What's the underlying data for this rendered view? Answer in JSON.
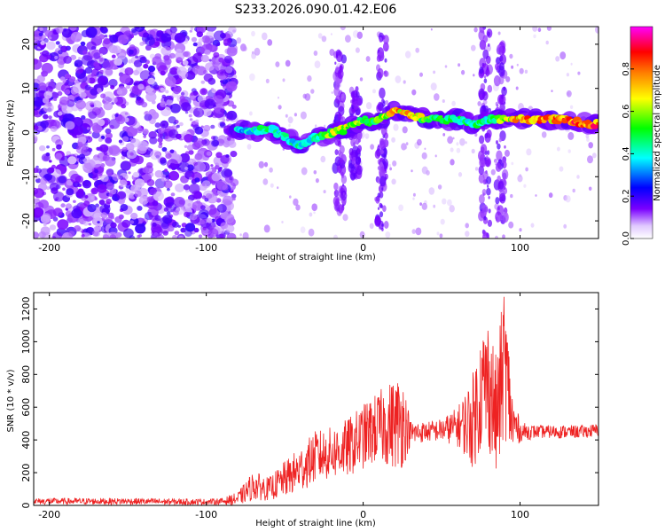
{
  "title": "S233.2026.090.01.42.E06",
  "chart_data": [
    {
      "type": "heatmap",
      "xlabel": "Height of straight line (km)",
      "ylabel": "Frequency (Hz)",
      "xlim": [
        -210,
        150
      ],
      "ylim": [
        -24,
        24
      ],
      "x_ticks": [
        -200,
        -100,
        0,
        100
      ],
      "y_ticks": [
        -20,
        -10,
        0,
        10,
        20
      ],
      "colorbar": {
        "label": "Normalized spectral amplitude",
        "range": [
          0,
          1
        ],
        "ticks": [
          "0.0",
          "0.2",
          "0.4",
          "0.6",
          "0.8"
        ],
        "colors": [
          "#ffffff",
          "#e0c8ff",
          "#7a00ff",
          "#0000ff",
          "#00ffff",
          "#00ff00",
          "#ffff00",
          "#ff8000",
          "#ff0000",
          "#ff00ff"
        ]
      },
      "ridge": {
        "name": "",
        "x": [
          -80,
          -70,
          -60,
          -50,
          -40,
          -30,
          -20,
          -10,
          0,
          5,
          20,
          30,
          40,
          50,
          60,
          70,
          80,
          90,
          100,
          110,
          120,
          130,
          140,
          150
        ],
        "y": [
          1,
          0,
          1,
          -1,
          -3,
          -1,
          0,
          1,
          3,
          2,
          5,
          4,
          3,
          3,
          3,
          2,
          3,
          3,
          3,
          3,
          3,
          3,
          2,
          2
        ],
        "amplitude": [
          0.4,
          0.45,
          0.5,
          0.45,
          0.45,
          0.45,
          0.7,
          0.7,
          0.6,
          0.55,
          0.8,
          0.85,
          0.6,
          0.55,
          0.5,
          0.5,
          0.5,
          0.7,
          0.85,
          0.85,
          0.85,
          0.9,
          0.9,
          0.9
        ]
      },
      "noise_region": [
        -210,
        -82
      ]
    },
    {
      "type": "line",
      "xlabel": "Height of straight line (km)",
      "ylabel": "SNR (10 * v/v)",
      "xlim": [
        -210,
        150
      ],
      "ylim": [
        0,
        1300
      ],
      "x_ticks": [
        -200,
        -100,
        0,
        100
      ],
      "y_ticks": [
        0,
        200,
        400,
        600,
        800,
        1000,
        1200
      ],
      "series": [
        {
          "name": "",
          "color": "#ee2222",
          "x": [
            -210,
            -180,
            -150,
            -120,
            -100,
            -90,
            -80,
            -70,
            -60,
            -50,
            -40,
            -30,
            -20,
            -10,
            0,
            10,
            20,
            25,
            30,
            40,
            50,
            60,
            65,
            70,
            75,
            80,
            85,
            90,
            95,
            100,
            110,
            120,
            130,
            140,
            150
          ],
          "y": [
            25,
            25,
            25,
            22,
            22,
            25,
            40,
            120,
            100,
            160,
            220,
            300,
            320,
            350,
            420,
            480,
            500,
            520,
            440,
            450,
            460,
            480,
            500,
            520,
            700,
            760,
            520,
            900,
            500,
            450,
            450,
            450,
            450,
            450,
            460
          ],
          "spread": [
            20,
            20,
            20,
            20,
            18,
            20,
            40,
            90,
            70,
            110,
            140,
            160,
            160,
            180,
            200,
            220,
            280,
            300,
            80,
            60,
            70,
            120,
            200,
            300,
            380,
            420,
            380,
            480,
            220,
            60,
            40,
            40,
            40,
            40,
            40
          ]
        }
      ]
    }
  ]
}
